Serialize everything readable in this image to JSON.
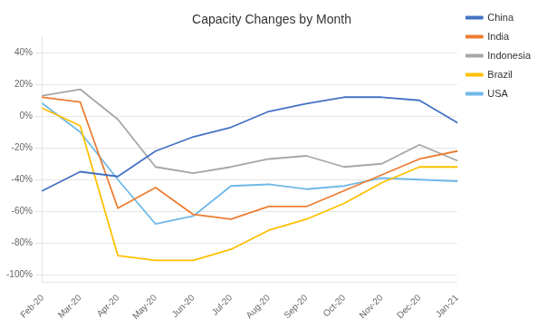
{
  "chart_data": {
    "type": "line",
    "title": "Capacity Changes by Month",
    "categories": [
      "Feb-20",
      "Mar-20",
      "Apr-20",
      "May-20",
      "Jun-20",
      "Jul-20",
      "Aug-20",
      "Sep-20",
      "Oct-20",
      "Nov-20",
      "Dec-20",
      "Jan-21"
    ],
    "series": [
      {
        "name": "China",
        "color": "#4472c4",
        "values": [
          -0.47,
          -0.35,
          -0.38,
          -0.22,
          -0.13,
          -0.07,
          0.03,
          0.08,
          0.12,
          0.12,
          0.1,
          -0.04
        ]
      },
      {
        "name": "India",
        "color": "#ed7d31",
        "values": [
          0.12,
          0.09,
          -0.58,
          -0.45,
          -0.62,
          -0.65,
          -0.57,
          -0.57,
          -0.47,
          -0.37,
          -0.27,
          -0.22
        ]
      },
      {
        "name": "Indonesia",
        "color": "#a6a6a6",
        "values": [
          0.13,
          0.17,
          -0.02,
          -0.32,
          -0.36,
          -0.32,
          -0.27,
          -0.25,
          -0.32,
          -0.3,
          -0.18,
          -0.28
        ]
      },
      {
        "name": "Brazil",
        "color": "#ffc000",
        "values": [
          0.05,
          -0.06,
          -0.88,
          -0.91,
          -0.91,
          -0.84,
          -0.72,
          -0.65,
          -0.55,
          -0.42,
          -0.32,
          -0.32
        ]
      },
      {
        "name": "USA",
        "color": "#70b8e8",
        "values": [
          0.08,
          -0.1,
          -0.4,
          -0.68,
          -0.63,
          -0.44,
          -0.43,
          -0.46,
          -0.44,
          -0.39,
          -0.4,
          -0.41
        ]
      }
    ],
    "ylim": [
      -1.05,
      0.5
    ],
    "yticks": [
      {
        "value": -1.0,
        "label": "-100%"
      },
      {
        "value": -0.8,
        "label": "-80%"
      },
      {
        "value": -0.6,
        "label": "-60%"
      },
      {
        "value": -0.4,
        "label": "-40%"
      },
      {
        "value": -0.2,
        "label": "-20%"
      },
      {
        "value": 0.0,
        "label": "0%"
      },
      {
        "value": 0.2,
        "label": "20%"
      },
      {
        "value": 0.4,
        "label": "40%"
      }
    ],
    "grid": true,
    "legend": "right"
  }
}
